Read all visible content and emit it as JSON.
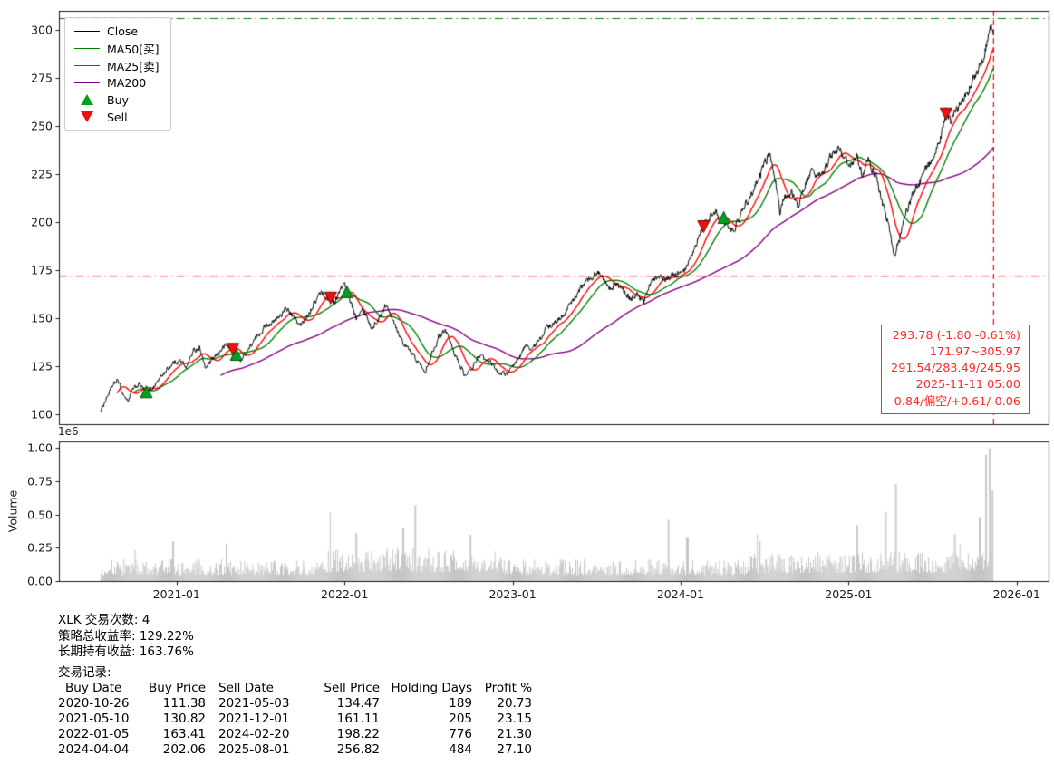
{
  "chart": {
    "legend": {
      "items": [
        {
          "label": "Close",
          "color": "#000000",
          "type": "line"
        },
        {
          "label": "MA50[买]",
          "color": "#008000",
          "type": "line"
        },
        {
          "label": "MA25[卖]",
          "color": "#ff0000",
          "type": "line"
        },
        {
          "label": "MA200",
          "color": "#800080",
          "type": "line"
        },
        {
          "label": "Buy",
          "color": "#00a020",
          "type": "marker-up"
        },
        {
          "label": "Sell",
          "color": "#f01010",
          "type": "marker-down"
        }
      ]
    },
    "annotation": {
      "color": "#ff2a2a",
      "lines": [
        "293.78 (-1.80 -0.61%)",
        "171.97~305.97",
        "291.54/283.49/245.95",
        "2025-11-11 05:00",
        "-0.84/偏空/+0.61/-0.06"
      ]
    },
    "volume_axis_label": "Volume",
    "volume_scale_label": "1e6"
  },
  "chart_data": {
    "type": "line",
    "title": "",
    "x_unit": "decimal_year",
    "x_domain": [
      2020.3,
      2026.19
    ],
    "x_ticks": [
      {
        "t": 2021.0,
        "label": "2021-01"
      },
      {
        "t": 2022.0,
        "label": "2022-01"
      },
      {
        "t": 2023.0,
        "label": "2023-01"
      },
      {
        "t": 2024.0,
        "label": "2024-01"
      },
      {
        "t": 2025.0,
        "label": "2025-01"
      },
      {
        "t": 2026.0,
        "label": "2026-01"
      }
    ],
    "price_ylim": [
      95,
      310
    ],
    "price_yticks": [
      100,
      125,
      150,
      175,
      200,
      225,
      250,
      275,
      300
    ],
    "volume_ylim": [
      0,
      1.05
    ],
    "volume_yticks": [
      "0.00",
      "0.25",
      "0.50",
      "0.75",
      "1.00"
    ],
    "hlines": [
      {
        "y": 305.97,
        "color": "#008000",
        "dash": "dashdot"
      },
      {
        "y": 171.97,
        "color": "#ff0000",
        "dash": "dashdot"
      }
    ],
    "vlines": [
      {
        "t": 2025.863,
        "color": "#ff0000",
        "dash": "dashed",
        "label": "2025-11-11"
      }
    ],
    "close_keypoints": {
      "t": [
        2020.55,
        2020.58,
        2020.62,
        2020.65,
        2020.68,
        2020.71,
        2020.74,
        2020.78,
        2020.82,
        2020.86,
        2020.9,
        2020.94,
        2020.98,
        2021.02,
        2021.06,
        2021.1,
        2021.14,
        2021.17,
        2021.21,
        2021.25,
        2021.29,
        2021.336,
        2021.355,
        2021.38,
        2021.42,
        2021.46,
        2021.5,
        2021.54,
        2021.58,
        2021.62,
        2021.66,
        2021.7,
        2021.74,
        2021.78,
        2021.82,
        2021.86,
        2021.9,
        2021.917,
        2021.94,
        2021.97,
        2022.0,
        2022.014,
        2022.04,
        2022.07,
        2022.1,
        2022.13,
        2022.16,
        2022.2,
        2022.24,
        2022.28,
        2022.32,
        2022.36,
        2022.4,
        2022.44,
        2022.48,
        2022.52,
        2022.56,
        2022.6,
        2022.64,
        2022.68,
        2022.72,
        2022.76,
        2022.8,
        2022.84,
        2022.88,
        2022.92,
        2022.96,
        2023.0,
        2023.04,
        2023.08,
        2023.12,
        2023.16,
        2023.2,
        2023.25,
        2023.3,
        2023.35,
        2023.4,
        2023.45,
        2023.5,
        2023.54,
        2023.58,
        2023.62,
        2023.66,
        2023.7,
        2023.74,
        2023.78,
        2023.82,
        2023.86,
        2023.9,
        2023.94,
        2023.98,
        2024.02,
        2024.06,
        2024.1,
        2024.137,
        2024.17,
        2024.21,
        2024.24,
        2024.257,
        2024.3,
        2024.34,
        2024.38,
        2024.42,
        2024.46,
        2024.5,
        2024.53,
        2024.56,
        2024.59,
        2024.62,
        2024.66,
        2024.7,
        2024.74,
        2024.78,
        2024.82,
        2024.86,
        2024.9,
        2024.94,
        2024.98,
        2025.02,
        2025.05,
        2025.08,
        2025.12,
        2025.16,
        2025.2,
        2025.24,
        2025.27,
        2025.3,
        2025.34,
        2025.38,
        2025.42,
        2025.46,
        2025.5,
        2025.54,
        2025.58,
        2025.61,
        2025.64,
        2025.68,
        2025.72,
        2025.76,
        2025.8,
        2025.83,
        2025.85,
        2025.863
      ],
      "price": [
        102,
        108,
        115,
        118,
        111,
        107,
        113,
        116,
        111.38,
        114,
        119,
        123,
        127,
        128,
        125,
        133,
        135,
        124,
        128,
        132,
        136,
        134.47,
        130.82,
        128,
        133,
        138,
        143,
        147,
        148,
        152,
        155,
        150,
        146,
        152,
        158,
        164,
        160,
        161.11,
        158,
        164,
        168,
        163.41,
        158,
        151,
        156,
        152,
        145,
        149,
        157,
        152,
        143,
        136,
        132,
        127,
        123,
        132,
        140,
        145,
        135,
        127,
        120,
        124,
        131,
        128,
        126,
        122,
        121,
        124,
        130,
        136,
        134,
        139,
        145,
        147,
        152,
        158,
        165,
        170,
        174,
        172,
        166,
        168,
        164,
        160,
        163,
        158,
        168,
        172,
        170,
        172,
        173,
        174,
        180,
        190,
        198.22,
        202,
        206,
        200,
        202.06,
        195,
        200,
        208,
        215,
        222,
        230,
        236,
        226,
        205,
        213,
        216,
        208,
        220,
        226,
        222,
        228,
        235,
        238,
        233,
        230,
        236,
        224,
        232,
        225,
        210,
        198,
        182,
        190,
        205,
        214,
        221,
        227,
        234,
        241,
        256.82,
        251,
        258,
        263,
        270,
        278,
        286,
        295,
        303,
        293.78
      ]
    },
    "moving_averages": [
      {
        "name": "MA200",
        "window_days": 260,
        "color": "#800080"
      },
      {
        "name": "MA50[买]",
        "window_days": 70,
        "color": "#008000"
      },
      {
        "name": "MA25[卖]",
        "window_days": 35,
        "color": "#ff0000"
      }
    ],
    "marker_colors": {
      "buy_fill": "#00a020",
      "buy_edge": "#004d10",
      "sell_fill": "#f01010",
      "sell_edge": "#7a0000"
    },
    "buy_markers": [
      {
        "date": "2020-10-26",
        "t": 2020.82,
        "price": 111.38
      },
      {
        "date": "2021-05-10",
        "t": 2021.355,
        "price": 130.82
      },
      {
        "date": "2022-01-05",
        "t": 2022.014,
        "price": 163.41
      },
      {
        "date": "2024-04-04",
        "t": 2024.257,
        "price": 202.06
      }
    ],
    "sell_markers": [
      {
        "date": "2021-05-03",
        "t": 2021.336,
        "price": 134.47
      },
      {
        "date": "2021-12-01",
        "t": 2021.917,
        "price": 161.11
      },
      {
        "date": "2024-02-20",
        "t": 2024.137,
        "price": 198.22
      },
      {
        "date": "2025-08-01",
        "t": 2025.58,
        "price": 256.82
      }
    ],
    "volume_profile": {
      "bar_color": "#bfbfbf",
      "base_range": [
        0.05,
        0.25
      ],
      "spikes": [
        {
          "t": 2020.98,
          "v": 0.3
        },
        {
          "t": 2021.3,
          "v": 0.28
        },
        {
          "t": 2022.07,
          "v": 0.36
        },
        {
          "t": 2022.35,
          "v": 0.4
        },
        {
          "t": 2022.42,
          "v": 0.57
        },
        {
          "t": 2022.75,
          "v": 0.35
        },
        {
          "t": 2023.93,
          "v": 0.46
        },
        {
          "t": 2024.04,
          "v": 0.33
        },
        {
          "t": 2024.47,
          "v": 0.3
        },
        {
          "t": 2025.05,
          "v": 0.42
        },
        {
          "t": 2025.22,
          "v": 0.52
        },
        {
          "t": 2025.28,
          "v": 0.73
        },
        {
          "t": 2025.63,
          "v": 0.35
        },
        {
          "t": 2025.78,
          "v": 0.48
        },
        {
          "t": 2025.82,
          "v": 0.95
        },
        {
          "t": 2025.84,
          "v": 1.0
        },
        {
          "t": 2025.857,
          "v": 0.68
        }
      ]
    }
  },
  "stats": {
    "line1": "XLK 交易次数: 4",
    "line2": "策略总收益率: 129.22%",
    "line3": "长期持有收益: 163.76%",
    "line4": "交易记录:",
    "table": {
      "headers": [
        "Buy Date",
        "Buy Price",
        "Sell Date",
        "Sell Price",
        "Holding Days",
        "Profit %"
      ],
      "rows": [
        [
          "2020-10-26",
          "111.38",
          "2021-05-03",
          "134.47",
          "189",
          "20.73"
        ],
        [
          "2021-05-10",
          "130.82",
          "2021-12-01",
          "161.11",
          "205",
          "23.15"
        ],
        [
          "2022-01-05",
          "163.41",
          "2024-02-20",
          "198.22",
          "776",
          "21.30"
        ],
        [
          "2024-04-04",
          "202.06",
          "2025-08-01",
          "256.82",
          "484",
          "27.10"
        ]
      ]
    }
  }
}
